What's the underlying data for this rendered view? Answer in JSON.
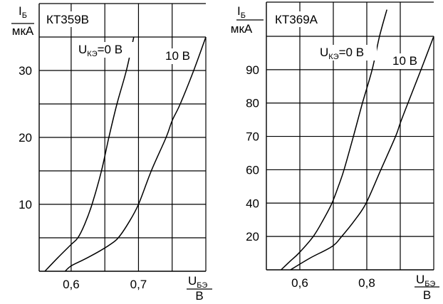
{
  "chart_data": [
    {
      "type": "line",
      "title": "КТ359В",
      "ylabel": {
        "symbol": "I",
        "subscript": "Б",
        "unit": "мкА"
      },
      "xlabel": {
        "symbol": "U",
        "subscript": "БЭ",
        "unit": "В"
      },
      "xlim": [
        0.5525,
        0.8
      ],
      "ylim": [
        0,
        40
      ],
      "x_gridlines": [
        0.6,
        0.65,
        0.7,
        0.75,
        0.8
      ],
      "y_gridlines": [
        0,
        5,
        10,
        15,
        20,
        25,
        30,
        35
      ],
      "x_ticks": [
        {
          "value": 0.6,
          "label": "0,6"
        },
        {
          "value": 0.7,
          "label": "0,7"
        }
      ],
      "y_ticks": [
        {
          "value": 10,
          "label": "10"
        },
        {
          "value": 20,
          "label": "20"
        },
        {
          "value": 30,
          "label": "30"
        }
      ],
      "grid": true,
      "series": [
        {
          "name": "UКЭ=0 В",
          "label": {
            "main": "U",
            "sub": "КЭ",
            "rest": "=0 В"
          },
          "x": [
            0.561,
            0.58,
            0.6,
            0.61,
            0.62,
            0.631,
            0.645,
            0.656,
            0.668,
            0.682,
            0.693
          ],
          "y": [
            0,
            2,
            4,
            5,
            7,
            10,
            15,
            20,
            25,
            30,
            35
          ]
        },
        {
          "name": "10 В",
          "label": {
            "main": "10 В"
          },
          "x": [
            0.591,
            0.6,
            0.62,
            0.642,
            0.658,
            0.67,
            0.685,
            0.7,
            0.719,
            0.741,
            0.75,
            0.762,
            0.782,
            0.8
          ],
          "y": [
            0,
            0.8,
            1.8,
            3,
            4,
            5,
            7.2,
            10,
            15,
            20,
            22.5,
            25,
            30,
            35
          ]
        }
      ]
    },
    {
      "type": "line",
      "title": "КТ369А",
      "ylabel": {
        "symbol": "I",
        "subscript": "Б",
        "unit": "мкА"
      },
      "xlabel": {
        "symbol": "U",
        "subscript": "БЭ",
        "unit": "В"
      },
      "xlim": [
        0.5,
        1.0
      ],
      "ylim": [
        0,
        108
      ],
      "y_scale": "piecewise (gridlines equally spaced)",
      "x_gridlines": [
        0.6,
        0.7,
        0.8,
        0.9,
        1.0
      ],
      "y_gridlines": [
        0,
        20,
        40,
        60,
        70,
        80,
        90,
        100
      ],
      "x_ticks": [
        {
          "value": 0.6,
          "label": "0,6"
        },
        {
          "value": 0.8,
          "label": "0,8"
        }
      ],
      "y_ticks": [
        {
          "value": 20,
          "label": "20"
        },
        {
          "value": 40,
          "label": "40"
        },
        {
          "value": 60,
          "label": "60"
        },
        {
          "value": 70,
          "label": "70"
        },
        {
          "value": 80,
          "label": "80"
        },
        {
          "value": 90,
          "label": "90"
        }
      ],
      "grid": true,
      "series": [
        {
          "name": "UКЭ=0 В",
          "label": {
            "main": "U",
            "sub": "КЭ",
            "rest": "=0 В"
          },
          "x": [
            0.544,
            0.57,
            0.597,
            0.64,
            0.67,
            0.696,
            0.715,
            0.732,
            0.76,
            0.787,
            0.816,
            0.838,
            0.86
          ],
          "y": [
            0,
            5,
            10,
            20,
            30,
            40,
            50,
            60,
            70,
            80,
            90,
            100,
            108
          ]
        },
        {
          "name": "10 В",
          "label": {
            "main": "10 В"
          },
          "x": [
            0.572,
            0.63,
            0.696,
            0.725,
            0.765,
            0.798,
            0.842,
            0.886,
            0.9,
            0.923,
            0.962,
            1.0
          ],
          "y": [
            0,
            7,
            14,
            20,
            30,
            40,
            60,
            70,
            74,
            80,
            90,
            100
          ]
        }
      ]
    }
  ]
}
